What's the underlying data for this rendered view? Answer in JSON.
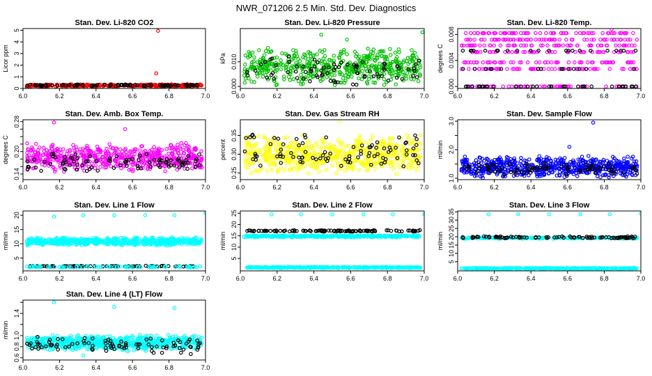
{
  "figure": {
    "title": "NWR_071206  2.5 Min. Std. Dev. Diagnostics"
  },
  "chart_data": [
    {
      "type": "scatter",
      "title": "Stan. Dev. Li-820 CO2",
      "ylabel": "Licor ppm",
      "xlim": [
        6.0,
        7.0
      ],
      "ylim": [
        0.0,
        5.15
      ],
      "xticks": [
        "6.0",
        "6.2",
        "6.4",
        "6.6",
        "6.8",
        "7.0"
      ],
      "xtick_values": [
        6.0,
        6.2,
        6.4,
        6.6,
        6.8,
        7.0
      ],
      "yticks": [
        "0",
        "1",
        "2",
        "3",
        "4",
        "5"
      ],
      "ytick_values": [
        0,
        1,
        2,
        3,
        4,
        5
      ],
      "series": [
        {
          "name": "colored",
          "color": "#ff0000",
          "n": 300,
          "low": 0.12,
          "high": 0.38,
          "outliers": [
            {
              "x": 6.74,
              "y": 4.95
            },
            {
              "x": 6.73,
              "y": 1.3
            }
          ]
        },
        {
          "name": "black",
          "color": "#000000",
          "n": 90,
          "low": 0.18,
          "high": 0.36,
          "outliers": []
        }
      ]
    },
    {
      "type": "scatter",
      "title": "Stan. Dev. Li-820 Pressure",
      "ylabel": "kPa",
      "xlim": [
        6.0,
        7.0
      ],
      "ylim": [
        -0.0008,
        0.0235
      ],
      "xticks": [
        "6.0",
        "6.2",
        "6.4",
        "6.6",
        "6.8",
        "7.0"
      ],
      "xtick_values": [
        6.0,
        6.2,
        6.4,
        6.6,
        6.8,
        7.0
      ],
      "yticks": [
        "0.000",
        "0.010"
      ],
      "ytick_values": [
        0.0,
        0.01
      ],
      "series": [
        {
          "name": "colored",
          "color": "#00c000",
          "n": 520,
          "low": 0.0,
          "high": 0.016,
          "outliers": [
            {
              "x": 6.44,
              "y": 0.021
            },
            {
              "x": 6.99,
              "y": 0.022
            },
            {
              "x": 6.58,
              "y": 0.019
            }
          ]
        },
        {
          "name": "black",
          "color": "#000000",
          "n": 80,
          "low": 0.0,
          "high": 0.013,
          "outliers": []
        }
      ]
    },
    {
      "type": "scatter",
      "title": "Stan. Dev. Li-820 Temp.",
      "ylabel": "degrees C",
      "xlim": [
        6.0,
        7.0
      ],
      "ylim": [
        -0.0003,
        0.0089
      ],
      "xticks": [
        "6.0",
        "6.2",
        "6.4",
        "6.6",
        "6.8",
        "7.0"
      ],
      "xtick_values": [
        6.0,
        6.2,
        6.4,
        6.6,
        6.8,
        7.0
      ],
      "yticks": [
        "0.000",
        "0.004",
        "0.008"
      ],
      "ytick_values": [
        0.0,
        0.004,
        0.008
      ],
      "series": [
        {
          "name": "colored",
          "color": "#ff00ff",
          "n": 420,
          "levels": [
            0.0,
            0.0027,
            0.0037,
            0.0053,
            0.0063,
            0.0072,
            0.0082
          ],
          "outliers": [
            {
              "x": 6.84,
              "y": 0.0088
            }
          ]
        },
        {
          "name": "black",
          "color": "#000000",
          "n": 70,
          "levels": [
            0.0,
            0.0027,
            0.0055
          ],
          "outliers": []
        }
      ]
    },
    {
      "type": "scatter",
      "title": "Stan. Dev. Amb. Box Temp.",
      "ylabel": "degrees C",
      "xlim": [
        6.0,
        7.0
      ],
      "ylim": [
        0.125,
        0.285
      ],
      "xticks": [
        "6.0",
        "6.2",
        "6.4",
        "6.6",
        "6.8",
        "7.0"
      ],
      "xtick_values": [
        6.0,
        6.2,
        6.4,
        6.6,
        6.8,
        7.0
      ],
      "yticks": [
        "0.14",
        "0.16",
        "0.18",
        "0.20",
        "0.22",
        "0.24",
        "0.26",
        "0.28"
      ],
      "ytick_values": [
        0.14,
        0.16,
        0.18,
        0.2,
        0.22,
        0.24,
        0.26,
        0.28
      ],
      "yticks_labeled": [
        "0.14",
        "0.20",
        "0.28"
      ],
      "series": [
        {
          "name": "colored",
          "color": "#ff00ff",
          "n": 560,
          "low": 0.145,
          "high": 0.225,
          "outliers": [
            {
              "x": 6.17,
              "y": 0.278
            },
            {
              "x": 6.56,
              "y": 0.26
            }
          ]
        },
        {
          "name": "black",
          "color": "#000000",
          "n": 90,
          "low": 0.14,
          "high": 0.2,
          "outliers": []
        }
      ]
    },
    {
      "type": "scatter",
      "title": "Stan. Dev. Gas Stream RH",
      "ylabel": "percent",
      "xlim": [
        6.0,
        7.0
      ],
      "ylim": [
        0.232,
        0.392
      ],
      "xticks": [
        "6.0",
        "6.2",
        "6.4",
        "6.6",
        "6.8",
        "7.0"
      ],
      "xtick_values": [
        6.0,
        6.2,
        6.4,
        6.6,
        6.8,
        7.0
      ],
      "yticks": [
        "0.25",
        "0.30",
        "0.35"
      ],
      "ytick_values": [
        0.25,
        0.3,
        0.35
      ],
      "series": [
        {
          "name": "colored",
          "color": "#ffff00",
          "n": 560,
          "low": 0.245,
          "high": 0.355,
          "outliers": [
            {
              "x": 6.54,
              "y": 0.39
            }
          ]
        },
        {
          "name": "black",
          "color": "#000000",
          "n": 90,
          "low": 0.25,
          "high": 0.36,
          "outliers": []
        }
      ]
    },
    {
      "type": "scatter",
      "title": "Stan. Dev. Sample Flow",
      "ylabel": "ml/min",
      "xlim": [
        6.0,
        7.0
      ],
      "ylim": [
        0.95,
        3.05
      ],
      "xticks": [
        "6.0",
        "6.2",
        "6.4",
        "6.6",
        "6.8",
        "7.0"
      ],
      "xtick_values": [
        6.0,
        6.2,
        6.4,
        6.6,
        6.8,
        7.0
      ],
      "yticks": [
        "1.0",
        "1.5",
        "2.0",
        "2.5",
        "3.0"
      ],
      "ytick_values": [
        1.0,
        1.5,
        2.0,
        2.5,
        3.0
      ],
      "yticks_labeled": [
        "1.0",
        "2.0",
        "3.0"
      ],
      "series": [
        {
          "name": "colored",
          "color": "#0000ff",
          "n": 620,
          "low": 1.0,
          "high": 1.8,
          "outliers": [
            {
              "x": 6.74,
              "y": 2.95
            },
            {
              "x": 6.61,
              "y": 2.1
            }
          ]
        },
        {
          "name": "black",
          "color": "#000000",
          "n": 80,
          "low": 1.05,
          "high": 1.6,
          "outliers": []
        }
      ]
    },
    {
      "type": "scatter",
      "title": "Stan. Dev. Line 1 Flow",
      "ylabel": "ml/min",
      "xlim": [
        6.0,
        7.0
      ],
      "ylim": [
        0.5,
        21.5
      ],
      "xticks": [
        "6.0",
        "6.2",
        "6.4",
        "6.6",
        "6.8",
        "7.0"
      ],
      "xtick_values": [
        6.0,
        6.2,
        6.4,
        6.6,
        6.8,
        7.0
      ],
      "yticks": [
        "5",
        "10",
        "15",
        "20"
      ],
      "ytick_values": [
        5,
        10,
        15,
        20
      ],
      "series": [
        {
          "name": "colored",
          "color": "#00ffff",
          "n": 620,
          "low": 9.3,
          "high": 12.3,
          "outliers": [
            {
              "x": 6.17,
              "y": 19.5
            },
            {
              "x": 6.33,
              "y": 20.0
            },
            {
              "x": 6.5,
              "y": 20.0
            },
            {
              "x": 6.67,
              "y": 20.0
            },
            {
              "x": 6.83,
              "y": 20.0
            },
            {
              "x": 7.0,
              "y": 20.8
            }
          ]
        },
        {
          "name": "black",
          "color": "#000000",
          "n": 80,
          "low": 1.9,
          "high": 2.3,
          "outliers": []
        },
        {
          "name": "colored-low",
          "color": "#00ffff",
          "n": 80,
          "low": 1.7,
          "high": 2.1,
          "outliers": []
        }
      ]
    },
    {
      "type": "scatter",
      "title": "Stan. Dev. Line 2 Flow",
      "ylabel": "ml/min",
      "xlim": [
        6.0,
        7.0
      ],
      "ylim": [
        -0.5,
        26.0
      ],
      "xticks": [
        "6.0",
        "6.2",
        "6.4",
        "6.6",
        "6.8",
        "7.0"
      ],
      "xtick_values": [
        6.0,
        6.2,
        6.4,
        6.6,
        6.8,
        7.0
      ],
      "yticks": [
        "5",
        "10",
        "15",
        "20",
        "25"
      ],
      "ytick_values": [
        5,
        10,
        15,
        20,
        25
      ],
      "series": [
        {
          "name": "colored-high",
          "color": "#00ffff",
          "n": 360,
          "low": 14.3,
          "high": 15.3,
          "outliers": [
            {
              "x": 6.17,
              "y": 24.5
            },
            {
              "x": 6.33,
              "y": 24.5
            },
            {
              "x": 6.5,
              "y": 24.5
            },
            {
              "x": 6.67,
              "y": 24.5
            },
            {
              "x": 6.83,
              "y": 24.5
            },
            {
              "x": 7.0,
              "y": 24.5
            }
          ]
        },
        {
          "name": "colored-low",
          "color": "#00ffff",
          "n": 360,
          "low": 0.7,
          "high": 1.3,
          "outliers": []
        },
        {
          "name": "black",
          "color": "#000000",
          "n": 110,
          "low": 16.8,
          "high": 17.6,
          "outliers": []
        }
      ]
    },
    {
      "type": "scatter",
      "title": "Stan. Dev. Line 3 Flow",
      "ylabel": "ml/min",
      "xlim": [
        6.0,
        7.0
      ],
      "ylim": [
        -0.5,
        35.5
      ],
      "xticks": [
        "6.0",
        "6.2",
        "6.4",
        "6.6",
        "6.8",
        "7.0"
      ],
      "xtick_values": [
        6.0,
        6.2,
        6.4,
        6.6,
        6.8,
        7.0
      ],
      "yticks": [
        "5",
        "10",
        "15",
        "20",
        "25",
        "30",
        "35"
      ],
      "ytick_values": [
        5,
        10,
        15,
        20,
        25,
        30,
        35
      ],
      "series": [
        {
          "name": "colored-high",
          "color": "#00ffff",
          "n": 160,
          "low": 18.7,
          "high": 19.8,
          "outliers": [
            {
              "x": 6.17,
              "y": 33.5
            },
            {
              "x": 6.33,
              "y": 33.5
            },
            {
              "x": 6.5,
              "y": 33.5
            },
            {
              "x": 6.67,
              "y": 33.5
            },
            {
              "x": 6.83,
              "y": 33.5
            },
            {
              "x": 7.0,
              "y": 34.0
            }
          ]
        },
        {
          "name": "colored-low",
          "color": "#00ffff",
          "n": 360,
          "low": 0.7,
          "high": 1.3,
          "outliers": []
        },
        {
          "name": "black",
          "color": "#000000",
          "n": 90,
          "low": 19.0,
          "high": 20.4,
          "outliers": []
        }
      ]
    },
    {
      "type": "scatter",
      "title": "Stan. Dev. Line 4 (LT) Flow",
      "ylabel": "ml/min",
      "xlim": [
        6.0,
        7.0
      ],
      "ylim": [
        0.56,
        1.64
      ],
      "xticks": [
        "6.0",
        "6.2",
        "6.4",
        "6.6",
        "6.8",
        "7.0"
      ],
      "xtick_values": [
        6.0,
        6.2,
        6.4,
        6.6,
        6.8,
        7.0
      ],
      "yticks": [
        "0.6",
        "0.8",
        "1.0",
        "1.2",
        "1.4",
        "1.6"
      ],
      "ytick_values": [
        0.6,
        0.8,
        1.0,
        1.2,
        1.4,
        1.6
      ],
      "yticks_labeled": [
        "0.6",
        "0.8",
        "1.0",
        "1.4"
      ],
      "series": [
        {
          "name": "colored",
          "color": "#00ffff",
          "n": 620,
          "low": 0.72,
          "high": 1.02,
          "outliers": [
            {
              "x": 6.17,
              "y": 1.6
            },
            {
              "x": 6.5,
              "y": 1.52
            },
            {
              "x": 6.83,
              "y": 1.5
            },
            {
              "x": 6.33,
              "y": 0.64
            }
          ]
        },
        {
          "name": "black",
          "color": "#000000",
          "n": 90,
          "low": 0.66,
          "high": 0.98,
          "outliers": []
        }
      ]
    }
  ]
}
